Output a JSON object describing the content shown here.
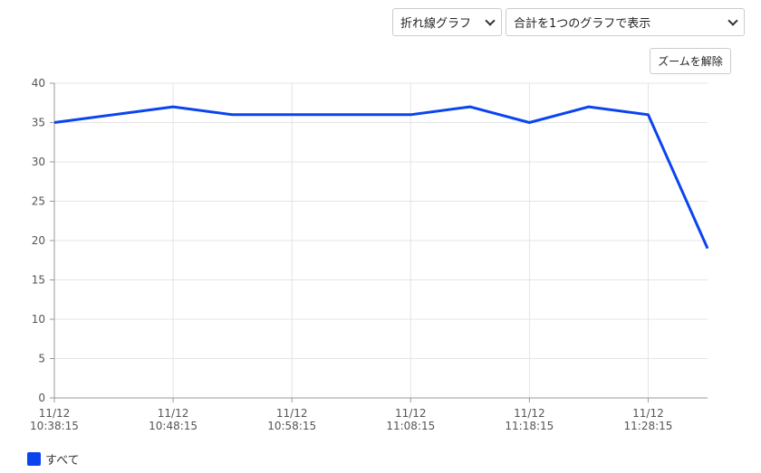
{
  "controls": {
    "chart_type": "折れ線グラフ",
    "display_mode": "合計を1つのグラフで表示",
    "reset_zoom": "ズームを解除"
  },
  "chart_data": {
    "type": "line",
    "categories": [
      [
        "11/12",
        "10:38:15"
      ],
      null,
      [
        "11/12",
        "10:48:15"
      ],
      null,
      [
        "11/12",
        "10:58:15"
      ],
      null,
      [
        "11/12",
        "11:08:15"
      ],
      null,
      [
        "11/12",
        "11:18:15"
      ],
      null,
      [
        "11/12",
        "11:28:15"
      ],
      null
    ],
    "series": [
      {
        "name": "すべて",
        "color": "#0a44ee",
        "values": [
          35,
          36,
          37,
          36,
          36,
          36,
          36,
          37,
          35,
          37,
          36,
          19
        ]
      }
    ],
    "ylim": [
      0,
      40
    ],
    "yticks": [
      0,
      5,
      10,
      15,
      20,
      25,
      30,
      35,
      40
    ],
    "grid": true
  }
}
